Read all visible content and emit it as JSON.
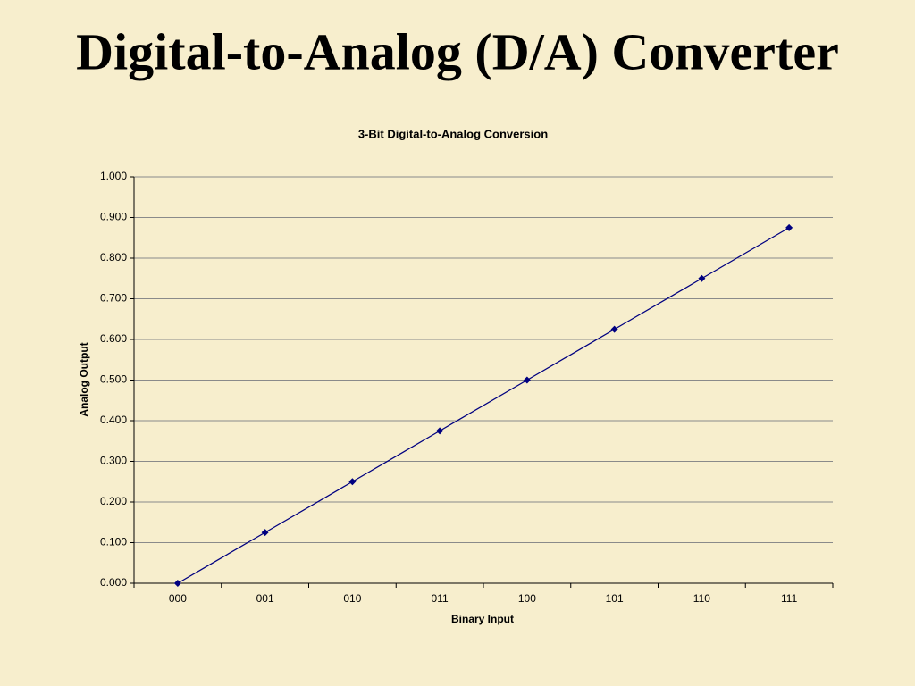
{
  "slide_title": "Digital-to-Analog (D/A) Converter",
  "chart_data": {
    "type": "line",
    "title": "3-Bit Digital-to-Analog Conversion",
    "x_label": "Binary Input",
    "y_label": "Analog Output",
    "categories": [
      "000",
      "001",
      "010",
      "011",
      "100",
      "101",
      "110",
      "111"
    ],
    "values": [
      0,
      0.125,
      0.25,
      0.375,
      0.5,
      0.625,
      0.75,
      0.875
    ],
    "color": "#000080",
    "ylim": [
      0,
      1
    ],
    "yticks": [
      {
        "value": 0,
        "label": "0.000"
      },
      {
        "value": 0.1,
        "label": "0.100"
      },
      {
        "value": 0.2,
        "label": "0.200"
      },
      {
        "value": 0.3,
        "label": "0.300"
      },
      {
        "value": 0.4,
        "label": "0.400"
      },
      {
        "value": 0.5,
        "label": "0.500"
      },
      {
        "value": 0.6,
        "label": "0.600"
      },
      {
        "value": 0.7,
        "label": "0.700"
      },
      {
        "value": 0.8,
        "label": "0.800"
      },
      {
        "value": 0.9,
        "label": "0.900"
      },
      {
        "value": 1,
        "label": "1.000"
      }
    ],
    "grid": true
  }
}
